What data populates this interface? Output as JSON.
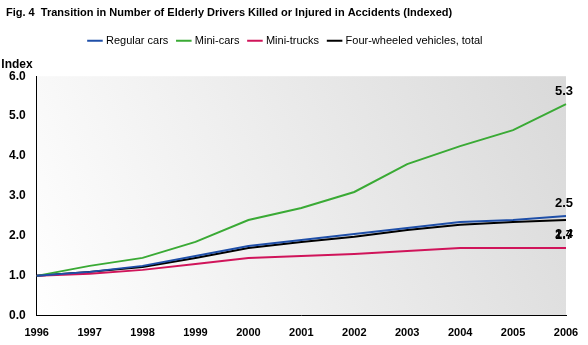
{
  "chart_data": {
    "type": "line",
    "title": "Fig. 4  Transition in Number of Elderly Drivers Killed or Injured in Accidents (Indexed)",
    "y_label": "Index",
    "categories": [
      "1996",
      "1997",
      "1998",
      "1999",
      "2000",
      "2001",
      "2002",
      "2003",
      "2004",
      "2005",
      "2006"
    ],
    "series": [
      {
        "name": "Regular cars",
        "color": "#1f4fa8",
        "values": [
          1.0,
          1.1,
          1.25,
          1.5,
          1.75,
          1.9,
          2.05,
          2.2,
          2.35,
          2.4,
          2.5
        ]
      },
      {
        "name": "Mini-cars",
        "color": "#3aaa35",
        "values": [
          1.0,
          1.25,
          1.45,
          1.85,
          2.4,
          2.7,
          3.1,
          3.8,
          4.25,
          4.65,
          5.3
        ]
      },
      {
        "name": "Mini-trucks",
        "color": "#d0145a",
        "values": [
          1.0,
          1.05,
          1.15,
          1.3,
          1.45,
          1.5,
          1.55,
          1.62,
          1.7,
          1.7,
          1.7
        ]
      },
      {
        "name": "Four-wheeled vehicles, total",
        "color": "#000000",
        "values": [
          1.0,
          1.1,
          1.22,
          1.45,
          1.7,
          1.85,
          1.98,
          2.15,
          2.28,
          2.35,
          2.4
        ]
      }
    ],
    "ylim": [
      0,
      6
    ],
    "yticks": [
      {
        "value": 0,
        "label": "0.0"
      },
      {
        "value": 1,
        "label": "1.0"
      },
      {
        "value": 2,
        "label": "2.0"
      },
      {
        "value": 3,
        "label": "3.0"
      },
      {
        "value": 4,
        "label": "4.0"
      },
      {
        "value": 5,
        "label": "5.0"
      },
      {
        "value": 6,
        "label": "6.0"
      }
    ],
    "grid": false,
    "legend": "top",
    "annotations": [
      {
        "text": "5.3",
        "x": "2006",
        "y": 5.3
      },
      {
        "text": "2.5",
        "x": "2006",
        "y": 2.5
      },
      {
        "text": "2.4",
        "x": "2006",
        "y": 2.4
      },
      {
        "text": "1.7",
        "x": "2006",
        "y": 1.7
      }
    ]
  }
}
